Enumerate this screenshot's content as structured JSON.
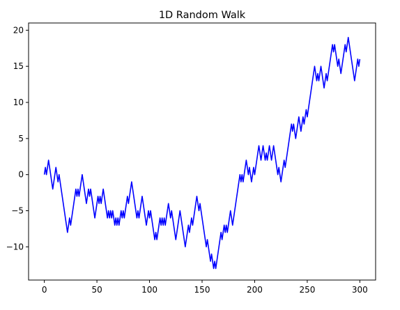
{
  "chart_data": {
    "type": "line",
    "title": "1D Random Walk",
    "xlabel": "",
    "ylabel": "",
    "xlim": [
      -15,
      315
    ],
    "ylim": [
      -14.6,
      21
    ],
    "xticks": [
      0,
      50,
      100,
      150,
      200,
      250,
      300
    ],
    "yticks": [
      -10,
      -5,
      0,
      5,
      10,
      15,
      20
    ],
    "grid": false,
    "legend": "none",
    "series": [
      {
        "color": "#0000ff",
        "x": [
          0,
          1,
          2,
          3,
          4,
          5,
          6,
          7,
          8,
          9,
          10,
          11,
          12,
          13,
          14,
          15,
          16,
          17,
          18,
          19,
          20,
          21,
          22,
          23,
          24,
          25,
          26,
          27,
          28,
          29,
          30,
          31,
          32,
          33,
          34,
          35,
          36,
          37,
          38,
          39,
          40,
          41,
          42,
          43,
          44,
          45,
          46,
          47,
          48,
          49,
          50,
          51,
          52,
          53,
          54,
          55,
          56,
          57,
          58,
          59,
          60,
          61,
          62,
          63,
          64,
          65,
          66,
          67,
          68,
          69,
          70,
          71,
          72,
          73,
          74,
          75,
          76,
          77,
          78,
          79,
          80,
          81,
          82,
          83,
          84,
          85,
          86,
          87,
          88,
          89,
          90,
          91,
          92,
          93,
          94,
          95,
          96,
          97,
          98,
          99,
          100,
          101,
          102,
          103,
          104,
          105,
          106,
          107,
          108,
          109,
          110,
          111,
          112,
          113,
          114,
          115,
          116,
          117,
          118,
          119,
          120,
          121,
          122,
          123,
          124,
          125,
          126,
          127,
          128,
          129,
          130,
          131,
          132,
          133,
          134,
          135,
          136,
          137,
          138,
          139,
          140,
          141,
          142,
          143,
          144,
          145,
          146,
          147,
          148,
          149,
          150,
          151,
          152,
          153,
          154,
          155,
          156,
          157,
          158,
          159,
          160,
          161,
          162,
          163,
          164,
          165,
          166,
          167,
          168,
          169,
          170,
          171,
          172,
          173,
          174,
          175,
          176,
          177,
          178,
          179,
          180,
          181,
          182,
          183,
          184,
          185,
          186,
          187,
          188,
          189,
          190,
          191,
          192,
          193,
          194,
          195,
          196,
          197,
          198,
          199,
          200,
          201,
          202,
          203,
          204,
          205,
          206,
          207,
          208,
          209,
          210,
          211,
          212,
          213,
          214,
          215,
          216,
          217,
          218,
          219,
          220,
          221,
          222,
          223,
          224,
          225,
          226,
          227,
          228,
          229,
          230,
          231,
          232,
          233,
          234,
          235,
          236,
          237,
          238,
          239,
          240,
          241,
          242,
          243,
          244,
          245,
          246,
          247,
          248,
          249,
          250,
          251,
          252,
          253,
          254,
          255,
          256,
          257,
          258,
          259,
          260,
          261,
          262,
          263,
          264,
          265,
          266,
          267,
          268,
          269,
          270,
          271,
          272,
          273,
          274,
          275,
          276,
          277,
          278,
          279,
          280,
          281,
          282,
          283,
          284,
          285,
          286,
          287,
          288,
          289,
          290,
          291,
          292,
          293,
          294,
          295,
          296,
          297,
          298,
          299,
          300
        ],
        "values": [
          0,
          1,
          0,
          1,
          2,
          1,
          0,
          -1,
          -2,
          -1,
          0,
          1,
          0,
          -1,
          0,
          -1,
          -2,
          -3,
          -4,
          -5,
          -6,
          -7,
          -8,
          -7,
          -6,
          -7,
          -6,
          -5,
          -4,
          -3,
          -2,
          -3,
          -2,
          -3,
          -2,
          -1,
          0,
          -1,
          -2,
          -3,
          -4,
          -3,
          -2,
          -3,
          -2,
          -3,
          -4,
          -5,
          -6,
          -5,
          -4,
          -3,
          -4,
          -3,
          -4,
          -3,
          -2,
          -3,
          -4,
          -5,
          -6,
          -5,
          -6,
          -5,
          -6,
          -5,
          -6,
          -7,
          -6,
          -7,
          -6,
          -7,
          -6,
          -5,
          -6,
          -5,
          -6,
          -5,
          -4,
          -3,
          -4,
          -3,
          -2,
          -1,
          -2,
          -3,
          -4,
          -5,
          -6,
          -5,
          -6,
          -5,
          -4,
          -3,
          -4,
          -5,
          -6,
          -7,
          -6,
          -5,
          -6,
          -5,
          -6,
          -7,
          -8,
          -9,
          -8,
          -9,
          -8,
          -7,
          -6,
          -7,
          -6,
          -7,
          -6,
          -7,
          -6,
          -5,
          -4,
          -5,
          -6,
          -5,
          -6,
          -7,
          -8,
          -9,
          -8,
          -7,
          -6,
          -5,
          -6,
          -7,
          -8,
          -9,
          -10,
          -9,
          -8,
          -7,
          -8,
          -7,
          -6,
          -7,
          -6,
          -5,
          -4,
          -3,
          -4,
          -5,
          -4,
          -5,
          -6,
          -7,
          -8,
          -9,
          -10,
          -9,
          -10,
          -11,
          -12,
          -11,
          -12,
          -13,
          -12,
          -13,
          -12,
          -11,
          -10,
          -9,
          -8,
          -9,
          -8,
          -7,
          -8,
          -7,
          -8,
          -7,
          -6,
          -5,
          -6,
          -7,
          -6,
          -5,
          -4,
          -3,
          -2,
          -1,
          0,
          -1,
          0,
          -1,
          0,
          1,
          2,
          1,
          0,
          1,
          0,
          -1,
          0,
          1,
          0,
          1,
          2,
          3,
          4,
          3,
          2,
          3,
          4,
          3,
          2,
          3,
          2,
          3,
          4,
          3,
          2,
          3,
          4,
          3,
          2,
          1,
          0,
          1,
          0,
          -1,
          0,
          1,
          2,
          1,
          2,
          3,
          4,
          5,
          6,
          7,
          6,
          7,
          6,
          5,
          6,
          7,
          8,
          7,
          6,
          7,
          8,
          7,
          8,
          9,
          8,
          9,
          10,
          11,
          12,
          13,
          14,
          15,
          14,
          13,
          14,
          13,
          14,
          15,
          14,
          13,
          12,
          13,
          14,
          13,
          14,
          15,
          16,
          17,
          18,
          17,
          18,
          17,
          16,
          15,
          16,
          15,
          14,
          15,
          16,
          17,
          18,
          17,
          18,
          19,
          18,
          17,
          16,
          15,
          14,
          13,
          14,
          15,
          16,
          15,
          16
        ]
      }
    ]
  }
}
